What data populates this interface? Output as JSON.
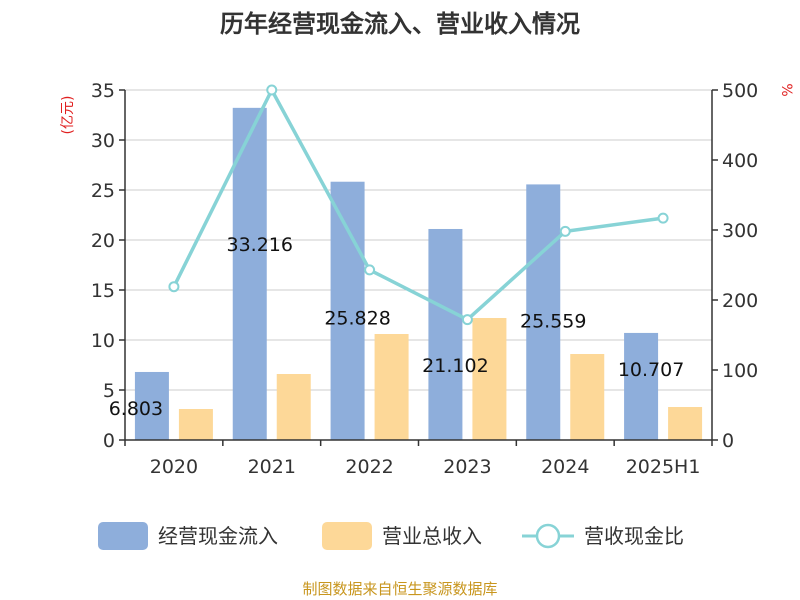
{
  "chart_data": {
    "type": "bar",
    "title": "历年经营现金流入、营业收入情况",
    "categories": [
      "2020",
      "2021",
      "2022",
      "2023",
      "2024",
      "2025H1"
    ],
    "y_left": {
      "label": "(亿元)",
      "ylim": [
        0,
        35
      ],
      "ticks": [
        "0",
        "5",
        "10",
        "15",
        "20",
        "25",
        "30",
        "35"
      ]
    },
    "y_right": {
      "label": "%",
      "ylim": [
        0,
        500
      ],
      "ticks": [
        "0",
        "100",
        "200",
        "300",
        "400",
        "500"
      ]
    },
    "series": [
      {
        "name": "经营现金流入",
        "kind": "bar",
        "axis": "left",
        "color": "#8eaedb",
        "values": [
          6.803,
          33.216,
          25.828,
          21.102,
          25.559,
          10.707
        ],
        "labels": [
          "6.803",
          "33.216",
          "25.828",
          "21.102",
          "25.559",
          "10.707"
        ]
      },
      {
        "name": "营业总收入",
        "kind": "bar",
        "axis": "left",
        "color": "#fdd898",
        "values": [
          3.1,
          6.6,
          10.6,
          12.2,
          8.6,
          3.3
        ]
      },
      {
        "name": "营收现金比",
        "kind": "line",
        "axis": "right",
        "color": "#87d3d6",
        "values": [
          219,
          500,
          243,
          172,
          298,
          317
        ]
      }
    ],
    "grid": true,
    "legend_position": "bottom"
  },
  "source": "制图数据来自恒生聚源数据库"
}
